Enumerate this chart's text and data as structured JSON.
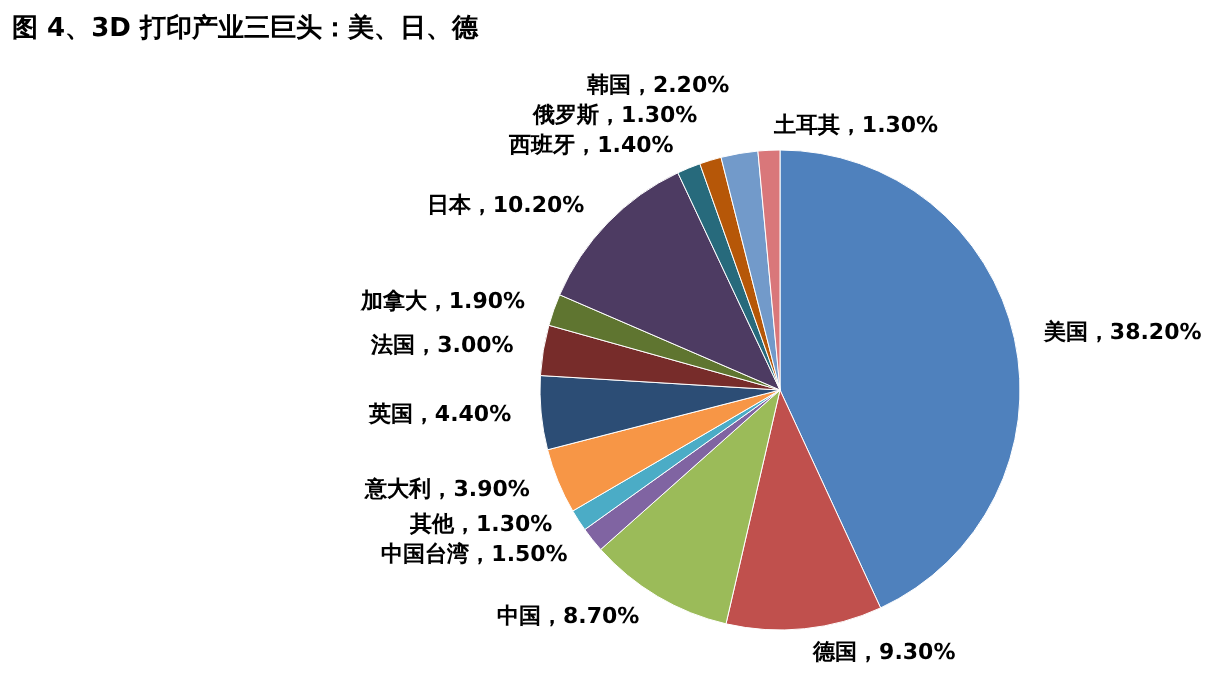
{
  "chart_data": {
    "type": "pie",
    "title": "图 4、3D 打印产业三巨头：美、日、德",
    "categories": [
      "美国",
      "德国",
      "中国",
      "中国台湾",
      "其他",
      "意大利",
      "英国",
      "法国",
      "加拿大",
      "日本",
      "西班牙",
      "俄罗斯",
      "韩国",
      "土耳其"
    ],
    "values": [
      38.2,
      9.3,
      8.7,
      1.5,
      1.3,
      3.9,
      4.4,
      3.0,
      1.9,
      10.2,
      1.4,
      1.3,
      2.2,
      1.3
    ],
    "value_labels": [
      "38.20%",
      "9.30%",
      "8.70%",
      "1.50%",
      "1.30%",
      "3.90%",
      "4.40%",
      "3.00%",
      "1.90%",
      "10.20%",
      "1.40%",
      "1.30%",
      "2.20%",
      "1.30%"
    ],
    "colors": [
      "#4f81bd",
      "#c0504d",
      "#9bbb59",
      "#8064a2",
      "#4bacc6",
      "#f79646",
      "#2c4d75",
      "#772c2a",
      "#5f7530",
      "#4d3b62",
      "#276a7c",
      "#b65708",
      "#729aca",
      "#d9777a"
    ]
  }
}
